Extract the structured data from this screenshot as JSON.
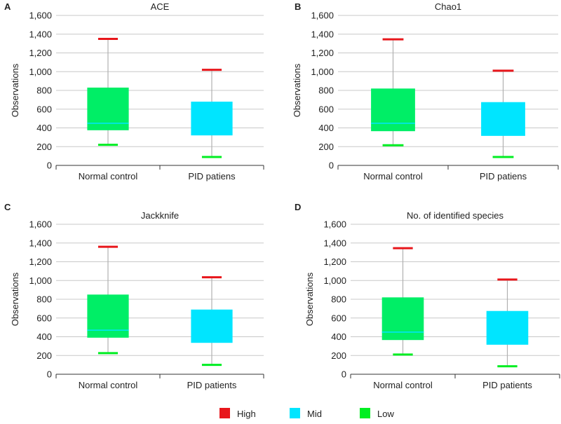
{
  "legend": [
    {
      "label": "High",
      "color": "#e8161b"
    },
    {
      "label": "Mid",
      "color": "#00e5ff"
    },
    {
      "label": "Low",
      "color": "#00ee22"
    }
  ],
  "colors": {
    "whisker": "#b0b0b0",
    "grid": "#c8c8c8",
    "box_low": "#00ee66",
    "box_mid": "#00e5ff"
  },
  "chart_data": [
    {
      "type": "box",
      "panel_label": "A",
      "title": "ACE",
      "ylabel": "Observations",
      "ylim": [
        0,
        1600
      ],
      "yticks": [
        "0",
        "200",
        "400",
        "600",
        "800",
        "1,000",
        "1,200",
        "1,400",
        "1,600"
      ],
      "grid": true,
      "categories": [
        "Normal control",
        "PID patiens"
      ],
      "boxes": [
        {
          "max": 1350,
          "q3": 830,
          "median": 450,
          "q1": 375,
          "min": 220,
          "fill": "low"
        },
        {
          "max": 1020,
          "q3": 680,
          "median": null,
          "q1": 320,
          "min": 90,
          "fill": "mid"
        }
      ]
    },
    {
      "type": "box",
      "panel_label": "B",
      "title": "Chao1",
      "ylabel": "Observations",
      "ylim": [
        0,
        1600
      ],
      "yticks": [
        "0",
        "200",
        "400",
        "600",
        "800",
        "1,000",
        "1,200",
        "1,400",
        "1,600"
      ],
      "grid": true,
      "categories": [
        "Normal control",
        "PID patiens"
      ],
      "boxes": [
        {
          "max": 1345,
          "q3": 820,
          "median": 450,
          "q1": 365,
          "min": 215,
          "fill": "low"
        },
        {
          "max": 1010,
          "q3": 675,
          "median": null,
          "q1": 315,
          "min": 90,
          "fill": "mid"
        }
      ]
    },
    {
      "type": "box",
      "panel_label": "C",
      "title": "Jackknife",
      "ylabel": "Observations",
      "ylim": [
        0,
        1600
      ],
      "yticks": [
        "0",
        "200",
        "400",
        "600",
        "800",
        "1,000",
        "1,200",
        "1,400",
        "1,600"
      ],
      "grid": true,
      "categories": [
        "Normal control",
        "PID patients"
      ],
      "boxes": [
        {
          "max": 1360,
          "q3": 850,
          "median": 470,
          "q1": 390,
          "min": 225,
          "fill": "low"
        },
        {
          "max": 1035,
          "q3": 690,
          "median": null,
          "q1": 335,
          "min": 100,
          "fill": "mid"
        }
      ]
    },
    {
      "type": "box",
      "panel_label": "D",
      "title": "No. of identified species",
      "ylabel": "Observations",
      "ylim": [
        0,
        1600
      ],
      "yticks": [
        "0",
        "200",
        "400",
        "600",
        "800",
        "1,000",
        "1,200",
        "1,400",
        "1,600"
      ],
      "grid": true,
      "categories": [
        "Normal control",
        "PID patients"
      ],
      "boxes": [
        {
          "max": 1345,
          "q3": 820,
          "median": 450,
          "q1": 365,
          "min": 210,
          "fill": "low"
        },
        {
          "max": 1010,
          "q3": 675,
          "median": null,
          "q1": 315,
          "min": 85,
          "fill": "mid"
        }
      ]
    }
  ]
}
